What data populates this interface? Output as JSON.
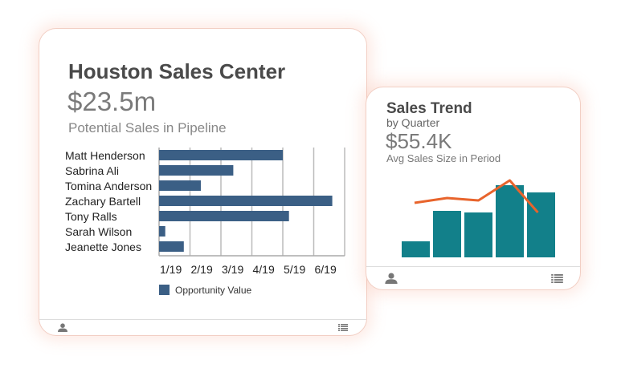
{
  "card1": {
    "title": "Houston Sales Center",
    "value": "$23.5m",
    "subtitle": "Potential Sales in Pipeline",
    "footer_icons": [
      "user-icon",
      "list-icon"
    ]
  },
  "card2": {
    "title": "Sales Trend",
    "subtitle": "by Quarter",
    "value": "$55.4K",
    "caption": "Avg Sales Size in Period",
    "footer_icons": [
      "user-icon",
      "list-icon"
    ]
  },
  "chart_data": [
    {
      "type": "bar",
      "orientation": "horizontal",
      "categories": [
        "Matt Henderson",
        "Sabrina Ali",
        "Tomina Anderson",
        "Zachary Bartell",
        "Tony Ralls",
        "Sarah Wilson",
        "Jeanette Jones"
      ],
      "values": [
        4.0,
        2.4,
        1.35,
        5.6,
        4.2,
        0.2,
        0.8
      ],
      "x_tick_labels": [
        "1/19",
        "2/19",
        "3/19",
        "4/19",
        "5/19",
        "6/19"
      ],
      "xlim": [
        0,
        6
      ],
      "grid": true,
      "legend": {
        "position": "bottom",
        "entries": [
          "Opportunity Value"
        ]
      },
      "colors": {
        "bar": "#3b5f85"
      }
    },
    {
      "type": "bar+line",
      "bar_values": [
        20,
        58,
        56,
        90,
        81
      ],
      "line_values": [
        68,
        74,
        71,
        96,
        56
      ],
      "ylim": [
        0,
        100
      ],
      "colors": {
        "bar": "#12808a",
        "line": "#e8642c"
      }
    }
  ]
}
